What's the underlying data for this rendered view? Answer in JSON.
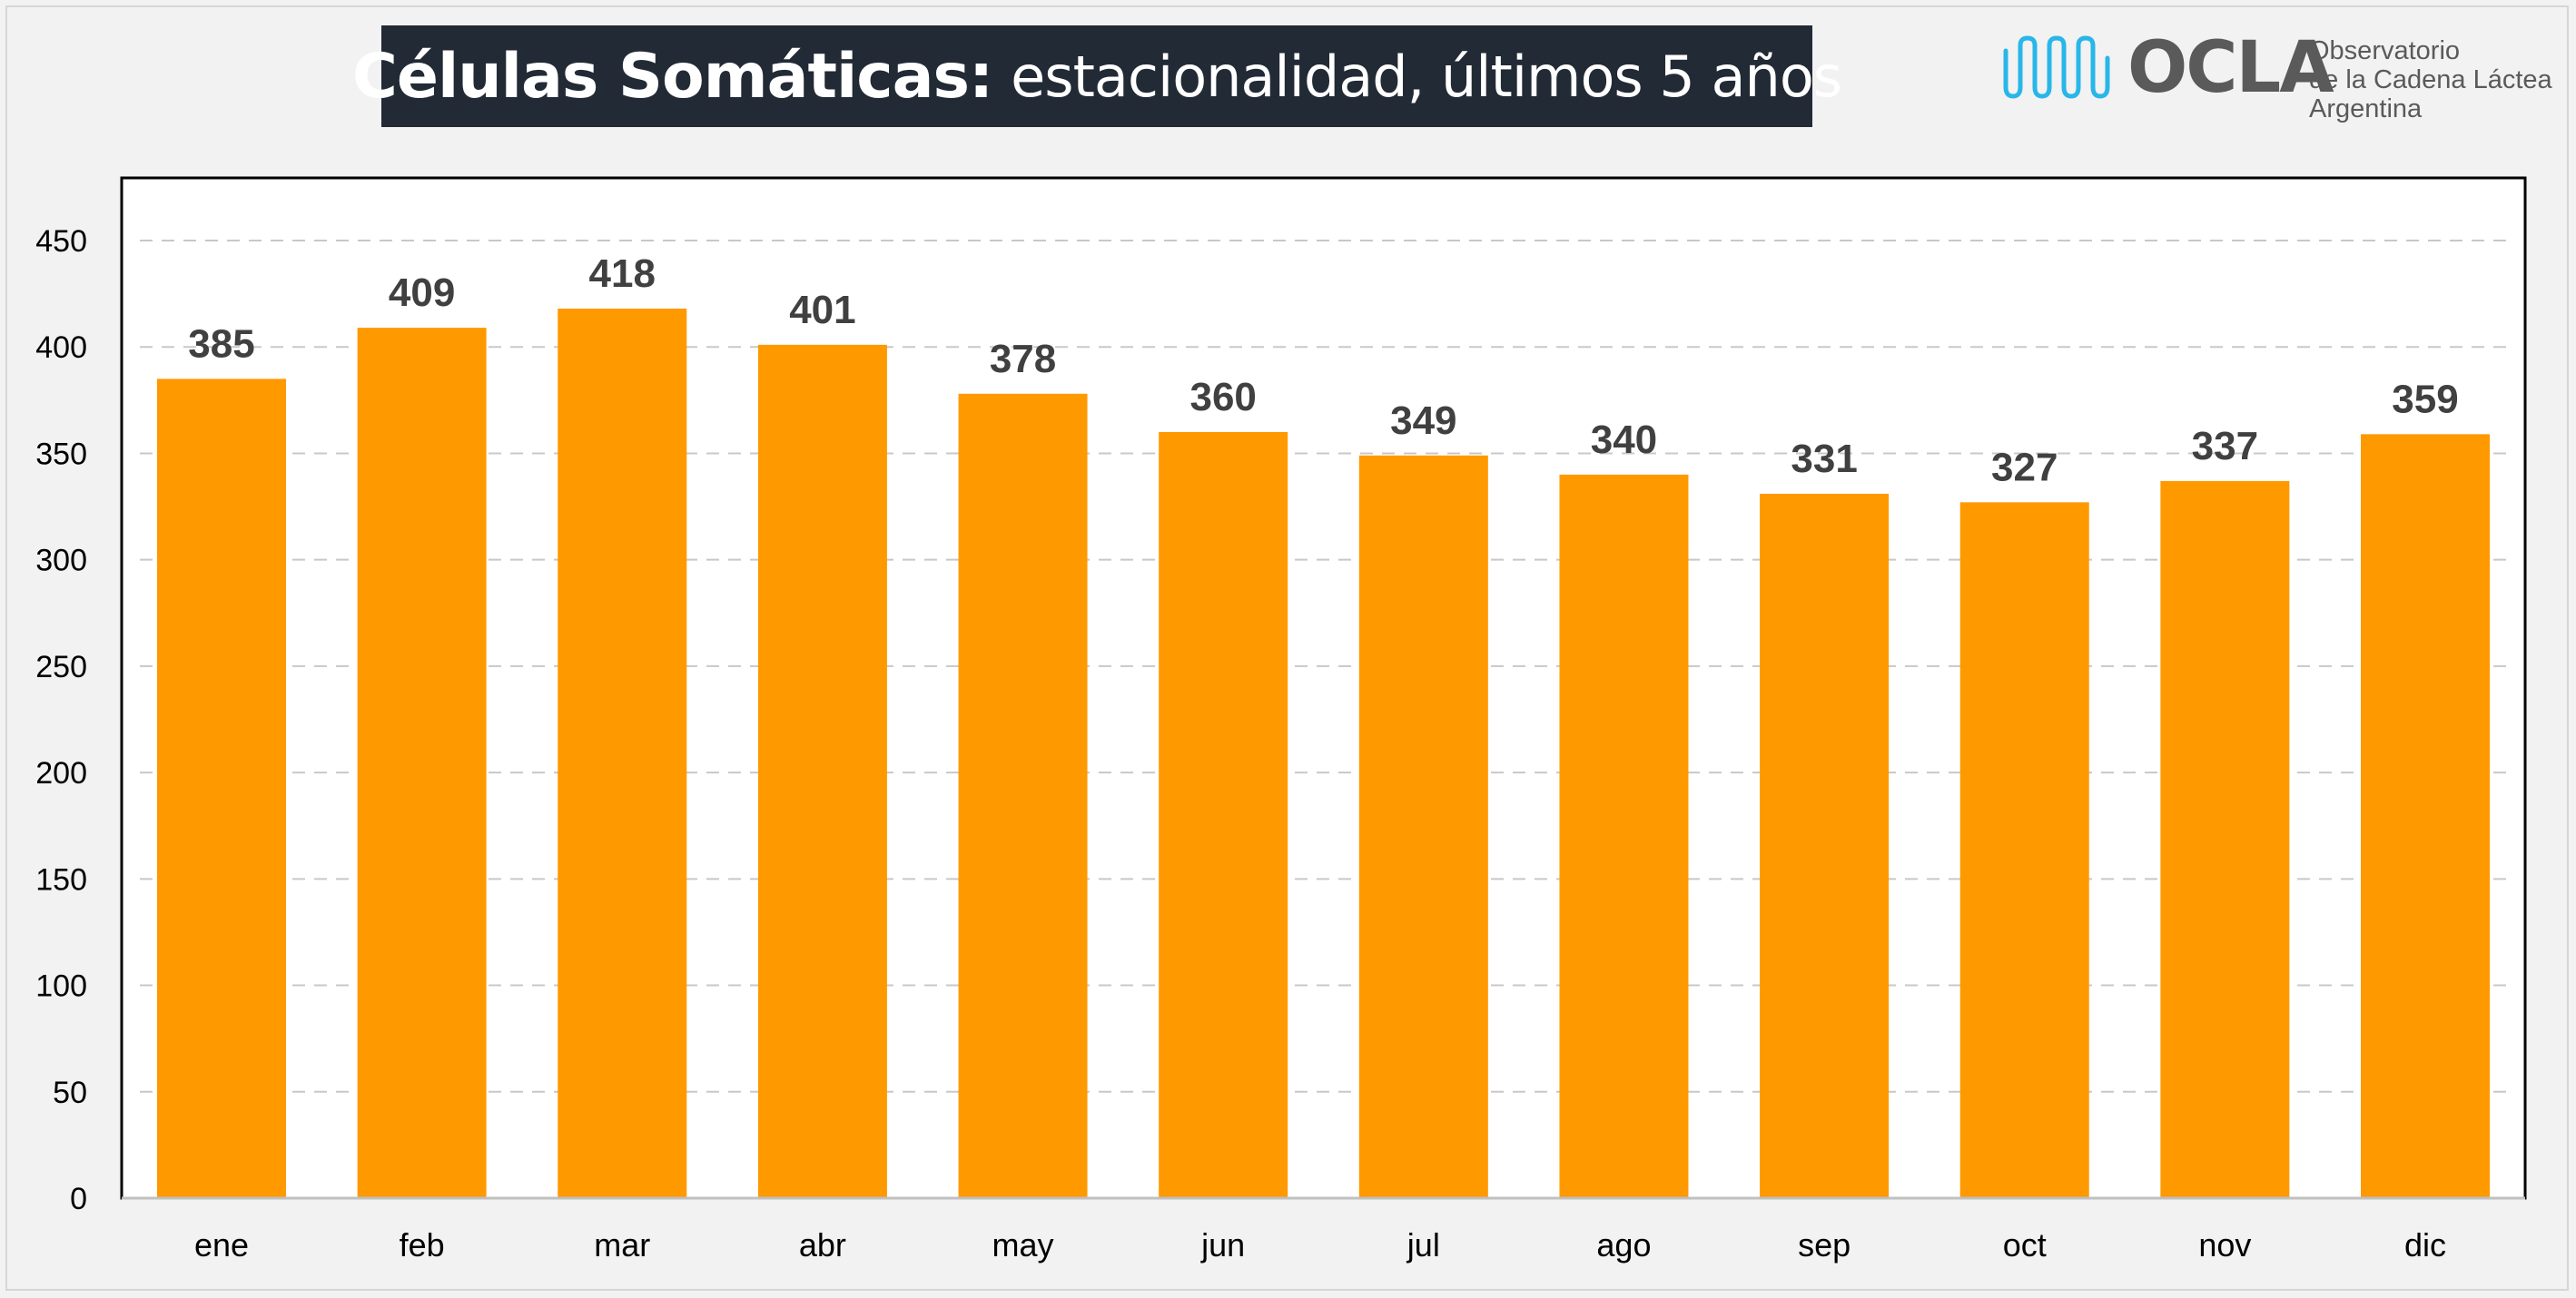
{
  "title": {
    "bold": "Células Somáticas:",
    "rest": "estacionalidad, últimos 5 años"
  },
  "logo": {
    "name": "OCLA",
    "line1": "Observatorio",
    "line2": "de la Cadena Láctea",
    "line3": "Argentina"
  },
  "colors": {
    "bar": "#ff9900",
    "title_bg": "#222a35",
    "logo_blue": "#29b6e8",
    "label": "#404040"
  },
  "chart_data": {
    "type": "bar",
    "categories": [
      "ene",
      "feb",
      "mar",
      "abr",
      "may",
      "jun",
      "jul",
      "ago",
      "sep",
      "oct",
      "nov",
      "dic"
    ],
    "values": [
      385,
      409,
      418,
      401,
      378,
      360,
      349,
      340,
      331,
      327,
      337,
      359
    ],
    "ylim": [
      0,
      450
    ],
    "yticks": [
      0,
      50,
      100,
      150,
      200,
      250,
      300,
      350,
      400,
      450
    ],
    "grid": true,
    "data_labels": true
  }
}
